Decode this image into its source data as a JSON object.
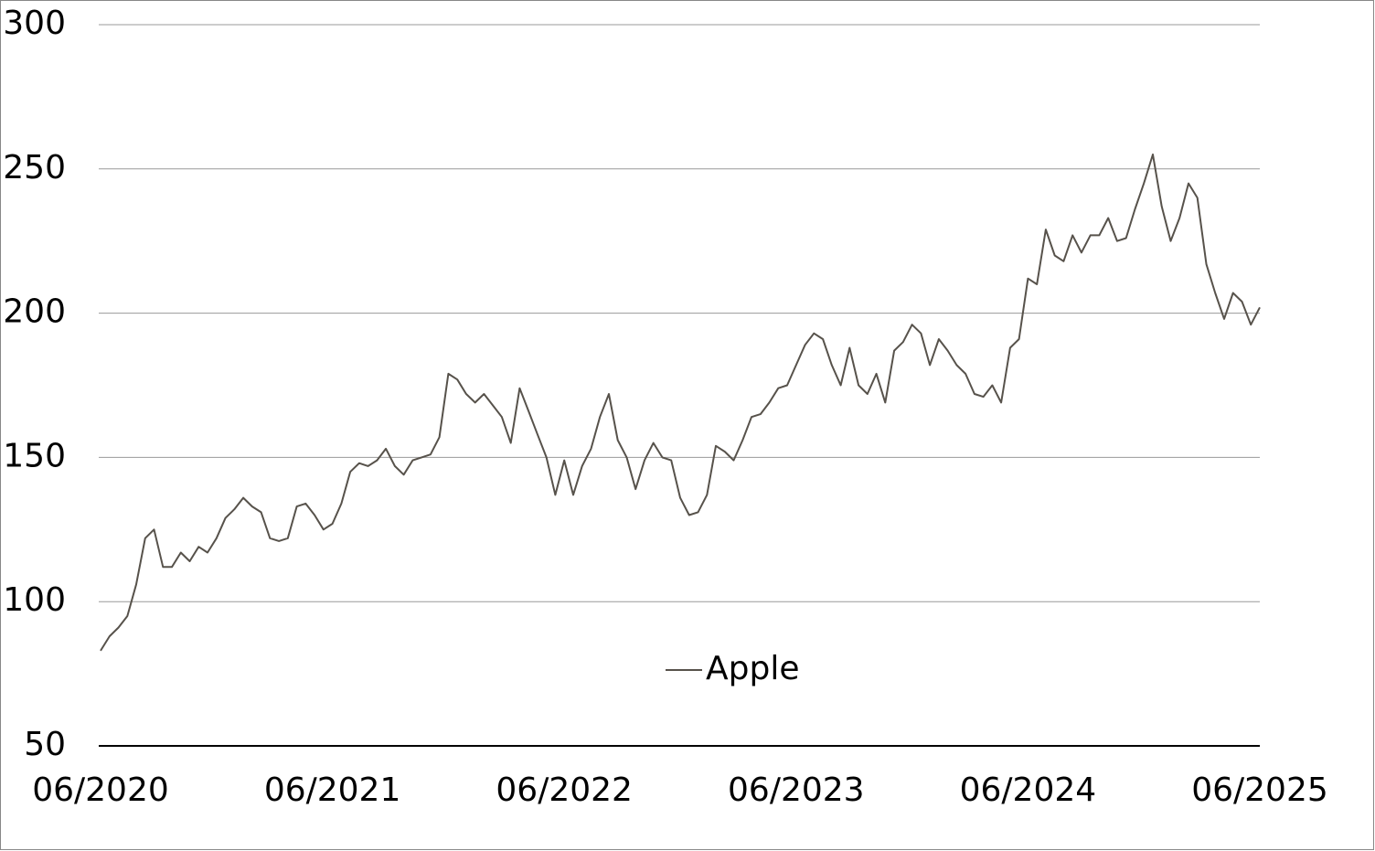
{
  "chart_data": {
    "type": "line",
    "categories": [
      "06/2020",
      null,
      null,
      null,
      null,
      null,
      null,
      null,
      null,
      null,
      null,
      null,
      null,
      null,
      null,
      null,
      null,
      null,
      null,
      null,
      null,
      null,
      null,
      null,
      null,
      null,
      "06/2021",
      null,
      null,
      null,
      null,
      null,
      null,
      null,
      null,
      null,
      null,
      null,
      null,
      null,
      null,
      null,
      null,
      null,
      null,
      null,
      null,
      null,
      null,
      null,
      null,
      null,
      "06/2022",
      null,
      null,
      null,
      null,
      null,
      null,
      null,
      null,
      null,
      null,
      null,
      null,
      null,
      null,
      null,
      null,
      null,
      null,
      null,
      null,
      null,
      null,
      null,
      null,
      null,
      "06/2023",
      null,
      null,
      null,
      null,
      null,
      null,
      null,
      null,
      null,
      null,
      null,
      null,
      null,
      null,
      null,
      null,
      null,
      null,
      null,
      null,
      null,
      null,
      null,
      null,
      null,
      "06/2024",
      null,
      null,
      null,
      null,
      null,
      null,
      null,
      null,
      null,
      null,
      null,
      null,
      null,
      null,
      null,
      null,
      null,
      null,
      null,
      null,
      null,
      null,
      null,
      null,
      null,
      "06/2025"
    ],
    "series": [
      {
        "name": "Apple",
        "color": "#57524b",
        "values": [
          83,
          88,
          91,
          95,
          106,
          122,
          125,
          112,
          112,
          117,
          114,
          119,
          117,
          122,
          129,
          132,
          136,
          133,
          131,
          122,
          121,
          122,
          133,
          134,
          130,
          125,
          127,
          134,
          145,
          148,
          147,
          149,
          153,
          147,
          144,
          149,
          150,
          151,
          157,
          179,
          177,
          172,
          169,
          172,
          168,
          164,
          155,
          174,
          166,
          158,
          150,
          137,
          149,
          137,
          147,
          153,
          164,
          172,
          156,
          150,
          139,
          149,
          155,
          150,
          149,
          136,
          130,
          131,
          137,
          154,
          152,
          149,
          156,
          164,
          165,
          169,
          174,
          175,
          182,
          189,
          193,
          191,
          182,
          175,
          188,
          175,
          172,
          179,
          169,
          187,
          190,
          196,
          193,
          182,
          191,
          187,
          182,
          179,
          172,
          171,
          175,
          169,
          188,
          191,
          212,
          210,
          229,
          220,
          218,
          227,
          221,
          227,
          227,
          233,
          225,
          226,
          236,
          245,
          255,
          237,
          225,
          233,
          245,
          240,
          217,
          207,
          198,
          207,
          204,
          196,
          202
        ]
      }
    ],
    "ylim": [
      50,
      300
    ],
    "yticks": [
      50,
      100,
      150,
      200,
      250,
      300
    ],
    "grid": true,
    "legend": "bottom"
  }
}
